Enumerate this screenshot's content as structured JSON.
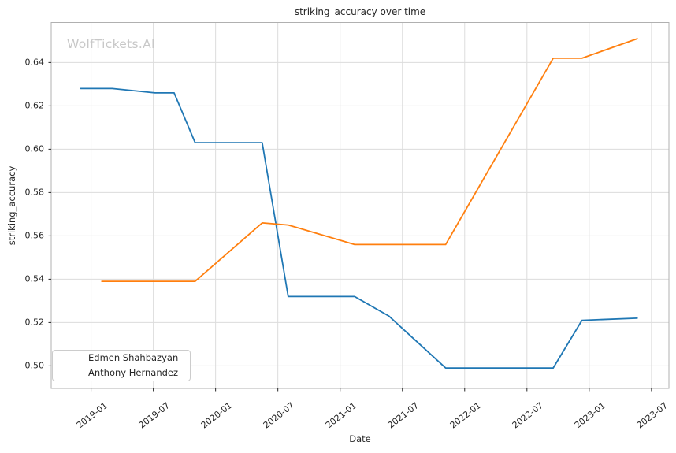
{
  "chart_data": {
    "type": "line",
    "title": "striking_accuracy over time",
    "xlabel": "Date",
    "ylabel": "striking_accuracy",
    "watermark": "WolfTickets.AI",
    "grid": true,
    "legend_position": "lower left",
    "x_ticks": [
      "2019-01",
      "2019-07",
      "2020-01",
      "2020-07",
      "2021-01",
      "2021-07",
      "2022-01",
      "2022-07",
      "2023-01",
      "2023-07"
    ],
    "y_ticks": [
      "0.50",
      "0.52",
      "0.54",
      "0.56",
      "0.58",
      "0.60",
      "0.62",
      "0.64"
    ],
    "xlim_decimal_years": [
      2018.68,
      2023.64
    ],
    "ylim": [
      0.4896,
      0.6585
    ],
    "series": [
      {
        "name": "Edmen Shahbazyan",
        "color": "#1f77b4",
        "points": [
          [
            "2018-12-01",
            0.628
          ],
          [
            "2019-03-02",
            0.628
          ],
          [
            "2019-07-06",
            0.626
          ],
          [
            "2019-09-01",
            0.626
          ],
          [
            "2019-11-02",
            0.603
          ],
          [
            "2020-05-16",
            0.603
          ],
          [
            "2020-08-01",
            0.532
          ],
          [
            "2021-02-13",
            0.532
          ],
          [
            "2021-05-22",
            0.523
          ],
          [
            "2021-11-06",
            0.499
          ],
          [
            "2022-09-17",
            0.499
          ],
          [
            "2022-12-10",
            0.521
          ],
          [
            "2023-05-20",
            0.522
          ]
        ]
      },
      {
        "name": "Anthony Hernandez",
        "color": "#ff7f0e",
        "points": [
          [
            "2019-02-02",
            0.539
          ],
          [
            "2019-11-02",
            0.539
          ],
          [
            "2020-05-16",
            0.566
          ],
          [
            "2020-08-01",
            0.565
          ],
          [
            "2021-02-13",
            0.556
          ],
          [
            "2021-11-06",
            0.556
          ],
          [
            "2022-09-17",
            0.642
          ],
          [
            "2022-12-10",
            0.642
          ],
          [
            "2023-05-20",
            0.651
          ]
        ]
      }
    ],
    "colors": {
      "grid": "#dcdcdc",
      "spine": "#b0b0b0",
      "tick": "#262626",
      "watermark": "#c8c8c8"
    }
  }
}
